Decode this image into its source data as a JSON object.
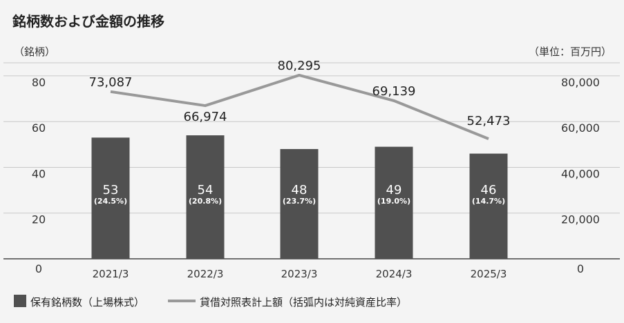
{
  "chart_data": {
    "type": "bar",
    "title": "銘柄数および金額の推移",
    "y_left_unit": "（銘柄）",
    "y_right_unit": "（単位：百万円）",
    "categories": [
      "2021/3",
      "2022/3",
      "2023/3",
      "2024/3",
      "2025/3"
    ],
    "ylim_left": [
      0,
      80
    ],
    "ylim_right": [
      0,
      80000
    ],
    "yticks_left": [
      "0",
      "20",
      "40",
      "60",
      "80"
    ],
    "yticks_right": [
      "0",
      "20,000",
      "40,000",
      "60,000",
      "80,000"
    ],
    "grid": true,
    "legend_placement": "bottom-left",
    "series": [
      {
        "name": "保有銘柄数（上場株式）",
        "kind": "bar",
        "axis": "left",
        "values": [
          53,
          54,
          48,
          49,
          46
        ],
        "value_labels": [
          "53",
          "54",
          "48",
          "49",
          "46"
        ],
        "sub_labels": [
          "(24.5%)",
          "(20.8%)",
          "(23.7%)",
          "(19.0%)",
          "(14.7%)"
        ],
        "color": "#505050"
      },
      {
        "name": "貸借対照表計上額（括弧内は対純資産比率）",
        "kind": "line",
        "axis": "right",
        "values": [
          73087,
          66974,
          80295,
          69139,
          52473
        ],
        "value_labels": [
          "73,087",
          "66,974",
          "80,295",
          "69,139",
          "52,473"
        ],
        "color": "#999999"
      }
    ]
  }
}
